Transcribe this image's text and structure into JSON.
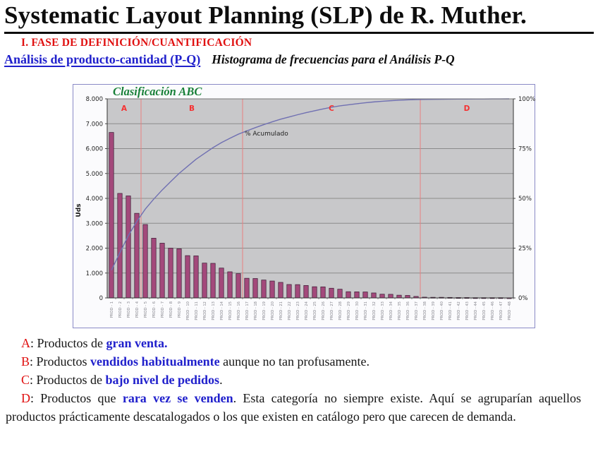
{
  "page": {
    "title": "Systematic Layout Planning (SLP) de R. Muther.",
    "phase_heading": "I. FASE DE DEFINICIÓN/CUANTIFICACIÓN",
    "analysis_heading": "Análisis de producto-cantidad (P-Q)",
    "histogram_caption": "Histograma de frecuencias para el Análisis P-Q"
  },
  "chart_data": {
    "type": "bar",
    "subtype": "pareto",
    "title": "Clasificación ABC",
    "ylabel": "Uds",
    "ylim_left": [
      0,
      8000
    ],
    "y_left_ticks": [
      "8.000",
      "7.000",
      "6.000",
      "5.000",
      "4.000",
      "3.000",
      "2.000",
      "1.000",
      "0"
    ],
    "y_right_ticks": [
      "100%",
      "75%",
      "50%",
      "25%",
      "0%"
    ],
    "ylim_right_pct": [
      0,
      100
    ],
    "grid": true,
    "x_label_prefix": "PROD - ",
    "values": [
      6650,
      4200,
      4100,
      3400,
      2950,
      2400,
      2200,
      2000,
      1975,
      1700,
      1690,
      1400,
      1390,
      1200,
      1050,
      975,
      790,
      780,
      720,
      680,
      625,
      540,
      535,
      500,
      450,
      445,
      390,
      350,
      250,
      245,
      240,
      200,
      150,
      145,
      110,
      100,
      60,
      30,
      25,
      25,
      20,
      15,
      15,
      10,
      10,
      10,
      10,
      5
    ],
    "line_label": "% Acumulado",
    "zones": [
      {
        "label": "A",
        "from_bar": 1,
        "to_bar": 4
      },
      {
        "label": "B",
        "from_bar": 5,
        "to_bar": 16
      },
      {
        "label": "C",
        "from_bar": 17,
        "to_bar": 37
      },
      {
        "label": "D",
        "from_bar": 38,
        "to_bar": 48
      }
    ],
    "colors": {
      "bar_fill": "#a3497b",
      "bar_stroke": "#3a1b33",
      "cumulative_line": "#7070b2",
      "zone_divider": "#e98080",
      "zone_label": "#f53131",
      "plot_bg": "#c8c8ca",
      "gridline": "#8b8b8b",
      "chart_border": "#8a8ac6",
      "title_green": "#188038",
      "x_label": "#86868e"
    }
  },
  "legend": [
    {
      "letter": "A",
      "pre": ": Productos de ",
      "highlight": "gran venta.",
      "post": ""
    },
    {
      "letter": "B",
      "pre": ": Productos ",
      "highlight": "vendidos habitualmente",
      "post": " aunque no tan profusamente."
    },
    {
      "letter": "C",
      "pre": ": Productos de ",
      "highlight": "bajo nivel de pedidos",
      "post": "."
    },
    {
      "letter": "D",
      "pre": ": Productos que ",
      "highlight": "rara vez se venden",
      "post": ". Esta categoría no siempre existe. Aquí se agruparían aquellos productos prácticamente descatalogados o los que existen en catálogo pero que carecen de demanda."
    }
  ]
}
